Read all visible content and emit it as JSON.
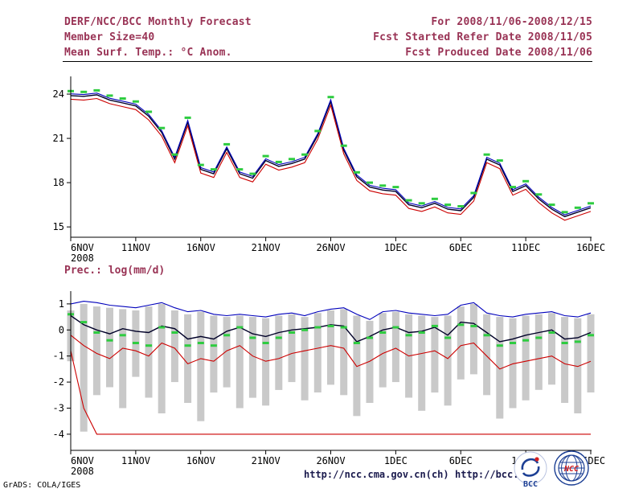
{
  "header": {
    "title": "DERF/NCC/BCC Monthly Forecast",
    "member_size": "Member Size=40",
    "temp_label": "Mean Surf. Temp.: °C Anom.",
    "for_range": "For 2008/11/06-2008/12/15",
    "refer_date": "Fcst Started Refer Date 2008/11/05",
    "produced_date": "Fcst Produced Date 2008/11/06"
  },
  "footer": {
    "grads_credit": "GrADS: COLA/IGES",
    "url_ncc": "http://ncc.cma.gov.cn(ch)",
    "url_bcc": "http://bcc.c",
    "bcc_logo_label": "BCC",
    "ncc_logo_label": "NCC"
  },
  "colors": {
    "header_text": "#993355",
    "axis": "#000000",
    "mean_line": "#000028",
    "red_line": "#cc0000",
    "blue_line": "#0000bb",
    "green_marker": "#2ecc40",
    "bar_fill": "#c9c9c9",
    "url_text": "#1a1a4d"
  },
  "chart_data": [
    {
      "type": "line",
      "title": "Mean Surf. Temp.: °C Anom.",
      "xlabel": "",
      "ylabel": "°C Anom.",
      "ylim": [
        15,
        24
      ],
      "yticks": [
        24,
        21,
        18,
        15
      ],
      "x_tick_labels": [
        "6NOV",
        "11NOV",
        "16NOV",
        "21NOV",
        "26NOV",
        "1DEC",
        "6DEC",
        "11DEC",
        "16DEC"
      ],
      "x_tick_days": [
        0,
        5,
        10,
        15,
        20,
        25,
        30,
        35,
        40
      ],
      "x_year_label": "2008",
      "grid": false,
      "series": [
        {
          "name": "ensemble-mean",
          "color": "#000028",
          "values": [
            23.9,
            23.85,
            23.95,
            23.6,
            23.4,
            23.2,
            22.5,
            21.4,
            19.6,
            22.1,
            18.9,
            18.6,
            20.3,
            18.6,
            18.3,
            19.5,
            19.1,
            19.3,
            19.6,
            21.2,
            23.5,
            20.2,
            18.4,
            17.7,
            17.5,
            17.4,
            16.5,
            16.3,
            16.6,
            16.2,
            16.1,
            17.0,
            19.6,
            19.2,
            17.4,
            17.8,
            16.9,
            16.2,
            15.7,
            16.0,
            16.3
          ]
        },
        {
          "name": "lower-member",
          "color": "#cc0000",
          "values": [
            23.65,
            23.6,
            23.7,
            23.35,
            23.15,
            22.95,
            22.25,
            21.15,
            19.35,
            21.85,
            18.65,
            18.35,
            20.05,
            18.35,
            18.05,
            19.25,
            18.85,
            19.05,
            19.35,
            20.95,
            23.25,
            19.95,
            18.15,
            17.45,
            17.25,
            17.15,
            16.25,
            16.05,
            16.35,
            15.95,
            15.85,
            16.75,
            19.35,
            18.95,
            17.15,
            17.55,
            16.65,
            15.95,
            15.45,
            15.75,
            16.05
          ]
        },
        {
          "name": "upper-member",
          "color": "#0000bb",
          "values": [
            24.02,
            23.97,
            24.07,
            23.72,
            23.52,
            23.32,
            22.62,
            21.52,
            19.72,
            22.22,
            19.02,
            18.72,
            20.42,
            18.72,
            18.42,
            19.62,
            19.22,
            19.42,
            19.72,
            21.32,
            23.62,
            20.32,
            18.52,
            17.82,
            17.62,
            17.52,
            16.62,
            16.42,
            16.72,
            16.32,
            16.22,
            17.12,
            19.72,
            19.32,
            17.52,
            17.92,
            17.02,
            16.32,
            15.82,
            16.12,
            16.42
          ]
        }
      ],
      "markers": {
        "name": "daily-green-marker",
        "color": "#2ecc40",
        "values": [
          24.2,
          24.15,
          24.25,
          23.9,
          23.7,
          23.5,
          22.8,
          21.7,
          19.9,
          22.4,
          19.2,
          18.9,
          20.6,
          18.9,
          18.6,
          19.8,
          19.4,
          19.6,
          19.9,
          21.5,
          23.8,
          20.5,
          18.7,
          18.0,
          17.8,
          17.7,
          16.8,
          16.6,
          16.9,
          16.5,
          16.4,
          17.3,
          19.9,
          19.5,
          17.7,
          18.1,
          17.2,
          16.5,
          16.0,
          16.3,
          16.6
        ]
      }
    },
    {
      "type": "bar",
      "title": "Prec.: log(mm/d)",
      "xlabel": "",
      "ylabel": "log(mm/d)",
      "ylim": [
        -4,
        1
      ],
      "yticks": [
        1,
        0,
        -1,
        -2,
        -3,
        -4
      ],
      "x_tick_labels": [
        "6NOV",
        "11NOV",
        "16NOV",
        "21NOV",
        "26NOV",
        "1DEC",
        "6DEC",
        "11DEC",
        "16DEC"
      ],
      "x_tick_days": [
        0,
        5,
        10,
        15,
        20,
        25,
        30,
        35,
        40
      ],
      "x_year_label": "2008",
      "grid": false,
      "bars": {
        "name": "ensemble-range-bar",
        "color": "#c9c9c9",
        "high": [
          0.75,
          1.0,
          0.9,
          0.85,
          0.8,
          0.75,
          0.9,
          1.0,
          0.75,
          0.6,
          0.7,
          0.55,
          0.5,
          0.55,
          0.5,
          0.45,
          0.55,
          0.6,
          0.5,
          0.65,
          0.75,
          0.8,
          0.55,
          0.35,
          0.65,
          0.7,
          0.6,
          0.55,
          0.5,
          0.55,
          0.9,
          1.0,
          0.6,
          0.5,
          0.45,
          0.55,
          0.6,
          0.65,
          0.5,
          0.45,
          0.6
        ],
        "low": [
          -1.2,
          -3.9,
          -2.5,
          -2.2,
          -3.0,
          -1.8,
          -2.6,
          -3.2,
          -2.0,
          -2.8,
          -3.5,
          -2.4,
          -2.2,
          -3.0,
          -2.6,
          -2.9,
          -2.3,
          -2.0,
          -2.7,
          -2.4,
          -2.1,
          -2.5,
          -3.3,
          -2.8,
          -2.2,
          -2.0,
          -2.6,
          -3.1,
          -2.4,
          -2.9,
          -1.9,
          -1.7,
          -2.5,
          -3.4,
          -3.0,
          -2.7,
          -2.3,
          -2.1,
          -2.8,
          -3.2,
          -2.4
        ]
      },
      "series": [
        {
          "name": "upper-envelope",
          "color": "#0000bb",
          "values": [
            1.0,
            1.1,
            1.05,
            0.95,
            0.9,
            0.85,
            0.95,
            1.05,
            0.85,
            0.7,
            0.75,
            0.6,
            0.55,
            0.6,
            0.55,
            0.5,
            0.6,
            0.65,
            0.55,
            0.7,
            0.8,
            0.85,
            0.6,
            0.4,
            0.7,
            0.75,
            0.65,
            0.6,
            0.55,
            0.6,
            0.95,
            1.05,
            0.65,
            0.55,
            0.5,
            0.6,
            0.65,
            0.7,
            0.55,
            0.5,
            0.65
          ]
        },
        {
          "name": "ensemble-mean",
          "color": "#000028",
          "values": [
            0.55,
            0.2,
            0.0,
            -0.15,
            0.05,
            -0.05,
            -0.1,
            0.15,
            0.05,
            -0.35,
            -0.25,
            -0.35,
            -0.05,
            0.1,
            -0.15,
            -0.25,
            -0.1,
            0.0,
            0.05,
            0.1,
            0.2,
            0.15,
            -0.45,
            -0.25,
            0.0,
            0.1,
            -0.1,
            -0.05,
            0.1,
            -0.2,
            0.3,
            0.25,
            -0.1,
            -0.45,
            -0.35,
            -0.2,
            -0.1,
            0.0,
            -0.35,
            -0.3,
            -0.1
          ]
        },
        {
          "name": "lower-envelope",
          "color": "#cc0000",
          "values": [
            -0.2,
            -0.6,
            -0.9,
            -1.1,
            -0.7,
            -0.8,
            -1.0,
            -0.5,
            -0.7,
            -1.3,
            -1.1,
            -1.2,
            -0.8,
            -0.6,
            -1.0,
            -1.2,
            -1.1,
            -0.9,
            -0.8,
            -0.7,
            -0.6,
            -0.7,
            -1.4,
            -1.2,
            -0.9,
            -0.7,
            -1.0,
            -0.9,
            -0.8,
            -1.1,
            -0.6,
            -0.5,
            -1.0,
            -1.5,
            -1.3,
            -1.2,
            -1.1,
            -1.0,
            -1.3,
            -1.4,
            -1.2
          ]
        },
        {
          "name": "floor-red-line",
          "color": "#cc0000",
          "values": [
            -0.8,
            -3.0,
            -4.0,
            -4.0,
            -4.0,
            -4.0,
            -4.0,
            -4.0,
            -4.0,
            -4.0,
            -4.0,
            -4.0,
            -4.0,
            -4.0,
            -4.0,
            -4.0,
            -4.0,
            -4.0,
            -4.0,
            -4.0,
            -4.0,
            -4.0,
            -4.0,
            -4.0,
            -4.0,
            -4.0,
            -4.0,
            -4.0,
            -4.0,
            -4.0,
            -4.0,
            -4.0,
            -4.0,
            -4.0,
            -4.0,
            -4.0,
            -4.0,
            -4.0,
            -4.0,
            -4.0,
            -4.0
          ]
        }
      ],
      "markers": {
        "name": "daily-green-marker",
        "color": "#2ecc40",
        "values": [
          0.6,
          0.3,
          -0.1,
          -0.4,
          -0.2,
          -0.5,
          -0.6,
          0.1,
          -0.1,
          -0.6,
          -0.5,
          -0.6,
          -0.2,
          0.1,
          -0.3,
          -0.5,
          -0.3,
          -0.1,
          0.0,
          0.1,
          0.15,
          0.1,
          -0.5,
          -0.3,
          -0.1,
          0.1,
          -0.2,
          -0.1,
          0.15,
          -0.3,
          0.2,
          0.15,
          -0.2,
          -0.6,
          -0.5,
          -0.4,
          -0.3,
          -0.1,
          -0.5,
          -0.45,
          -0.2
        ]
      }
    }
  ]
}
